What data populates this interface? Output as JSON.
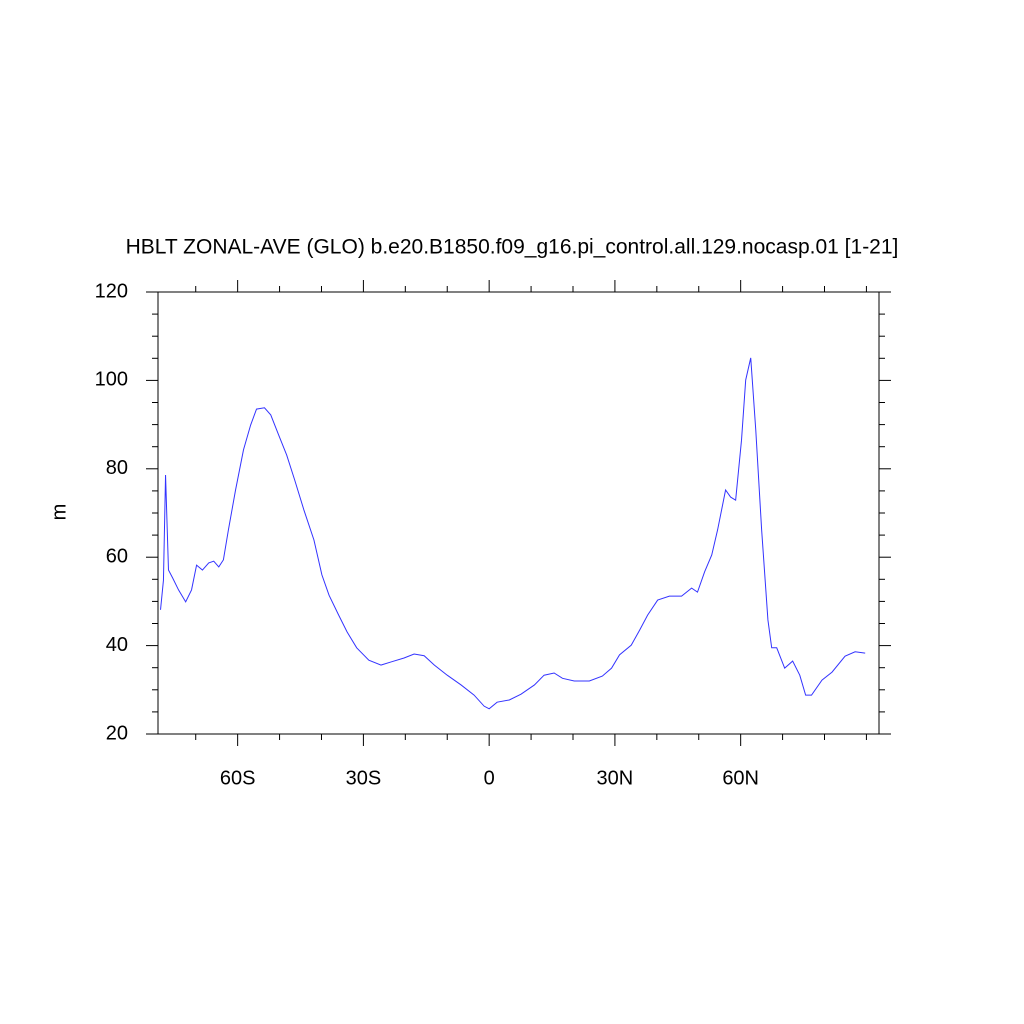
{
  "chart_data": {
    "type": "line",
    "title": "HBLT ZONAL-AVE (GLO) b.e20.B1850.f09_g16.pi_control.all.129.nocasp.01 [1-21]",
    "y_label": "m",
    "x": [
      -78.4,
      -77.7,
      -77.2,
      -76.5,
      -75.5,
      -74.1,
      -72.4,
      -71,
      -69.8,
      -68.4,
      -66.9,
      -65.7,
      -64.5,
      -63.4,
      -62.2,
      -60.5,
      -58.6,
      -56.9,
      -55.5,
      -53.6,
      -52.1,
      -50.2,
      -48.3,
      -46.4,
      -44.2,
      -41.8,
      -39.9,
      -38.2,
      -35.9,
      -33.9,
      -31.6,
      -28.7,
      -25.8,
      -23.4,
      -20.3,
      -17.9,
      -15.5,
      -13.1,
      -10,
      -6.7,
      -3.6,
      -1.2,
      0,
      1.9,
      4.8,
      7.6,
      10.8,
      13.1,
      15.5,
      17.5,
      20.3,
      23.9,
      27,
      29.2,
      31.1,
      33.9,
      35.9,
      37.8,
      40.2,
      43,
      45.9,
      48.3,
      49.7,
      51.4,
      53.1,
      54.5,
      56.4,
      57.6,
      58.8,
      60.2,
      61.2,
      62.4,
      63.6,
      65,
      66.5,
      67.4,
      68.6,
      70.5,
      72.4,
      74.1,
      75.5,
      76.9,
      79.4,
      81.8,
      84.9,
      87.3,
      89.7
    ],
    "series": [
      {
        "name": "HBLT",
        "color": "#3333ff",
        "values": [
          48.1,
          54.8,
          78.6,
          57.1,
          55.3,
          52.6,
          49.9,
          52.6,
          58.2,
          57.1,
          58.7,
          59.1,
          57.8,
          59.4,
          66.2,
          75.2,
          84.3,
          89.9,
          93.5,
          93.8,
          92.2,
          87.6,
          83.1,
          77.5,
          70.7,
          63.9,
          56,
          51.4,
          46.9,
          43.1,
          39.5,
          36.7,
          35.6,
          36.3,
          37.2,
          38.1,
          37.7,
          35.6,
          33.3,
          31.1,
          28.8,
          26.3,
          25.7,
          27.2,
          27.7,
          29,
          31.1,
          33.3,
          33.8,
          32.6,
          32,
          32,
          33.1,
          34.9,
          37.9,
          40.1,
          43.5,
          46.9,
          50.3,
          51.2,
          51.2,
          53,
          52.1,
          56.7,
          60.5,
          66.2,
          75.2,
          73.6,
          72.9,
          86.5,
          100.1,
          105.1,
          88.8,
          66.2,
          45.8,
          39.5,
          39.5,
          34.9,
          36.5,
          33.3,
          28.8,
          28.8,
          32.2,
          34,
          37.6,
          38.6,
          38.3
        ]
      }
    ],
    "xlim": [
      -79,
      93
    ],
    "ylim": [
      20,
      120
    ],
    "xticks": [
      {
        "value": -60,
        "label": "60S"
      },
      {
        "value": -30,
        "label": "30S"
      },
      0,
      {
        "value": 30,
        "label": "30N"
      },
      {
        "value": 60,
        "label": "60N"
      }
    ],
    "yticks": [
      20,
      40,
      60,
      80,
      100,
      120
    ],
    "xminorticks": [
      -70,
      -50,
      -40,
      -20,
      -10,
      10,
      20,
      40,
      50,
      70,
      80,
      90
    ],
    "yminorticks": [
      25,
      30,
      35,
      45,
      50,
      55,
      65,
      70,
      75,
      85,
      90,
      95,
      105,
      110,
      115
    ]
  }
}
